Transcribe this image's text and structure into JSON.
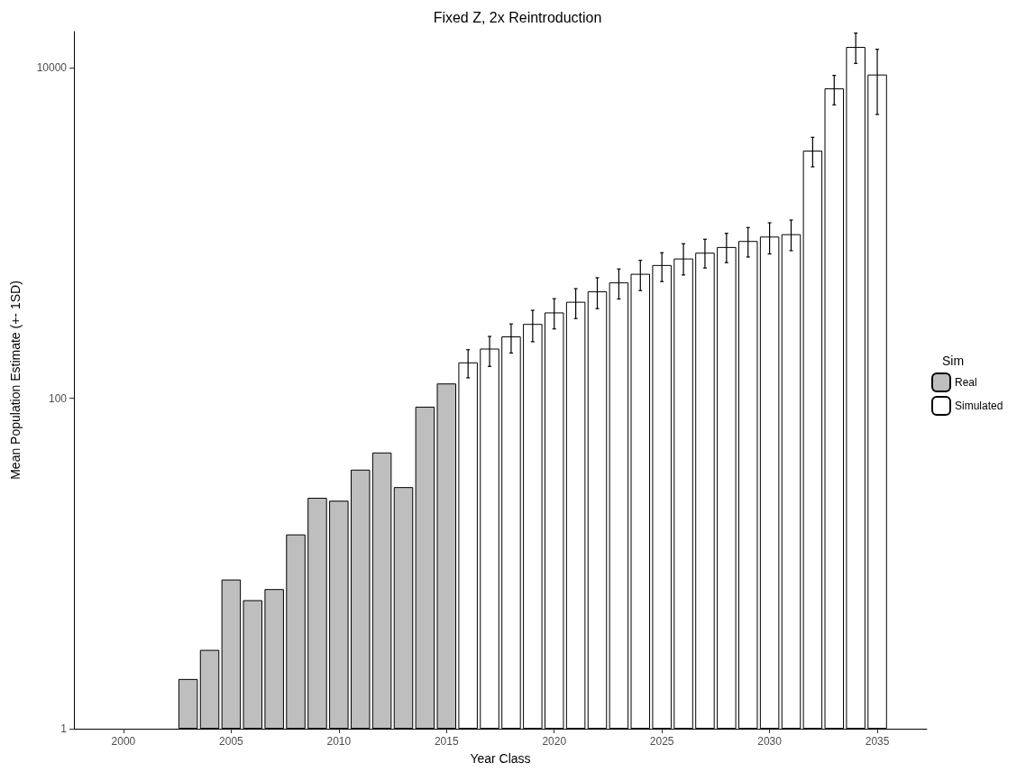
{
  "chart_data": {
    "type": "bar",
    "title": "Fixed Z, 2x Reintroduction",
    "xlabel": "Year Class",
    "ylabel": "Mean Population Estimate (+- 1SD)",
    "legend_title": "Sim",
    "legend": "right",
    "log": "y",
    "grid": false,
    "xlim": [
      1997.7,
      2037.3
    ],
    "xticks": [
      2000,
      2005,
      2010,
      2015,
      2020,
      2025,
      2030,
      2035
    ],
    "ylim": [
      1,
      16600
    ],
    "yticks": [
      1,
      100,
      10000
    ],
    "series": [
      {
        "name": "Real",
        "color": "#bebebe",
        "x": [
          2003,
          2004,
          2005,
          2006,
          2007,
          2008,
          2009,
          2010,
          2011,
          2012,
          2013,
          2014,
          2015
        ],
        "values": [
          2,
          3,
          8,
          6,
          7,
          15,
          25,
          24,
          37,
          47,
          29,
          89,
          123
        ]
      },
      {
        "name": "Simulated",
        "color": "#ffffff",
        "x": [
          2016,
          2017,
          2018,
          2019,
          2020,
          2021,
          2022,
          2023,
          2024,
          2025,
          2026,
          2027,
          2028,
          2029,
          2030,
          2031,
          2032,
          2033,
          2034,
          2035
        ],
        "values": [
          165,
          200,
          237,
          282,
          331,
          384,
          444,
          503,
          567,
          641,
          702,
          761,
          824,
          896,
          953,
          985,
          3160,
          7520,
          13400,
          9120
        ],
        "errors": [
          [
            133,
            197
          ],
          [
            156,
            237
          ],
          [
            188,
            282
          ],
          [
            220,
            341
          ],
          [
            263,
            401
          ],
          [
            304,
            461
          ],
          [
            349,
            537
          ],
          [
            399,
            607
          ],
          [
            449,
            684
          ],
          [
            509,
            761
          ],
          [
            558,
            863
          ],
          [
            615,
            918
          ],
          [
            663,
            997
          ],
          [
            717,
            1081
          ],
          [
            748,
            1155
          ],
          [
            783,
            1200
          ],
          [
            2520,
            3800
          ],
          [
            5980,
            9010
          ],
          [
            10650,
            16250
          ],
          [
            5230,
            12970
          ]
        ]
      }
    ]
  }
}
